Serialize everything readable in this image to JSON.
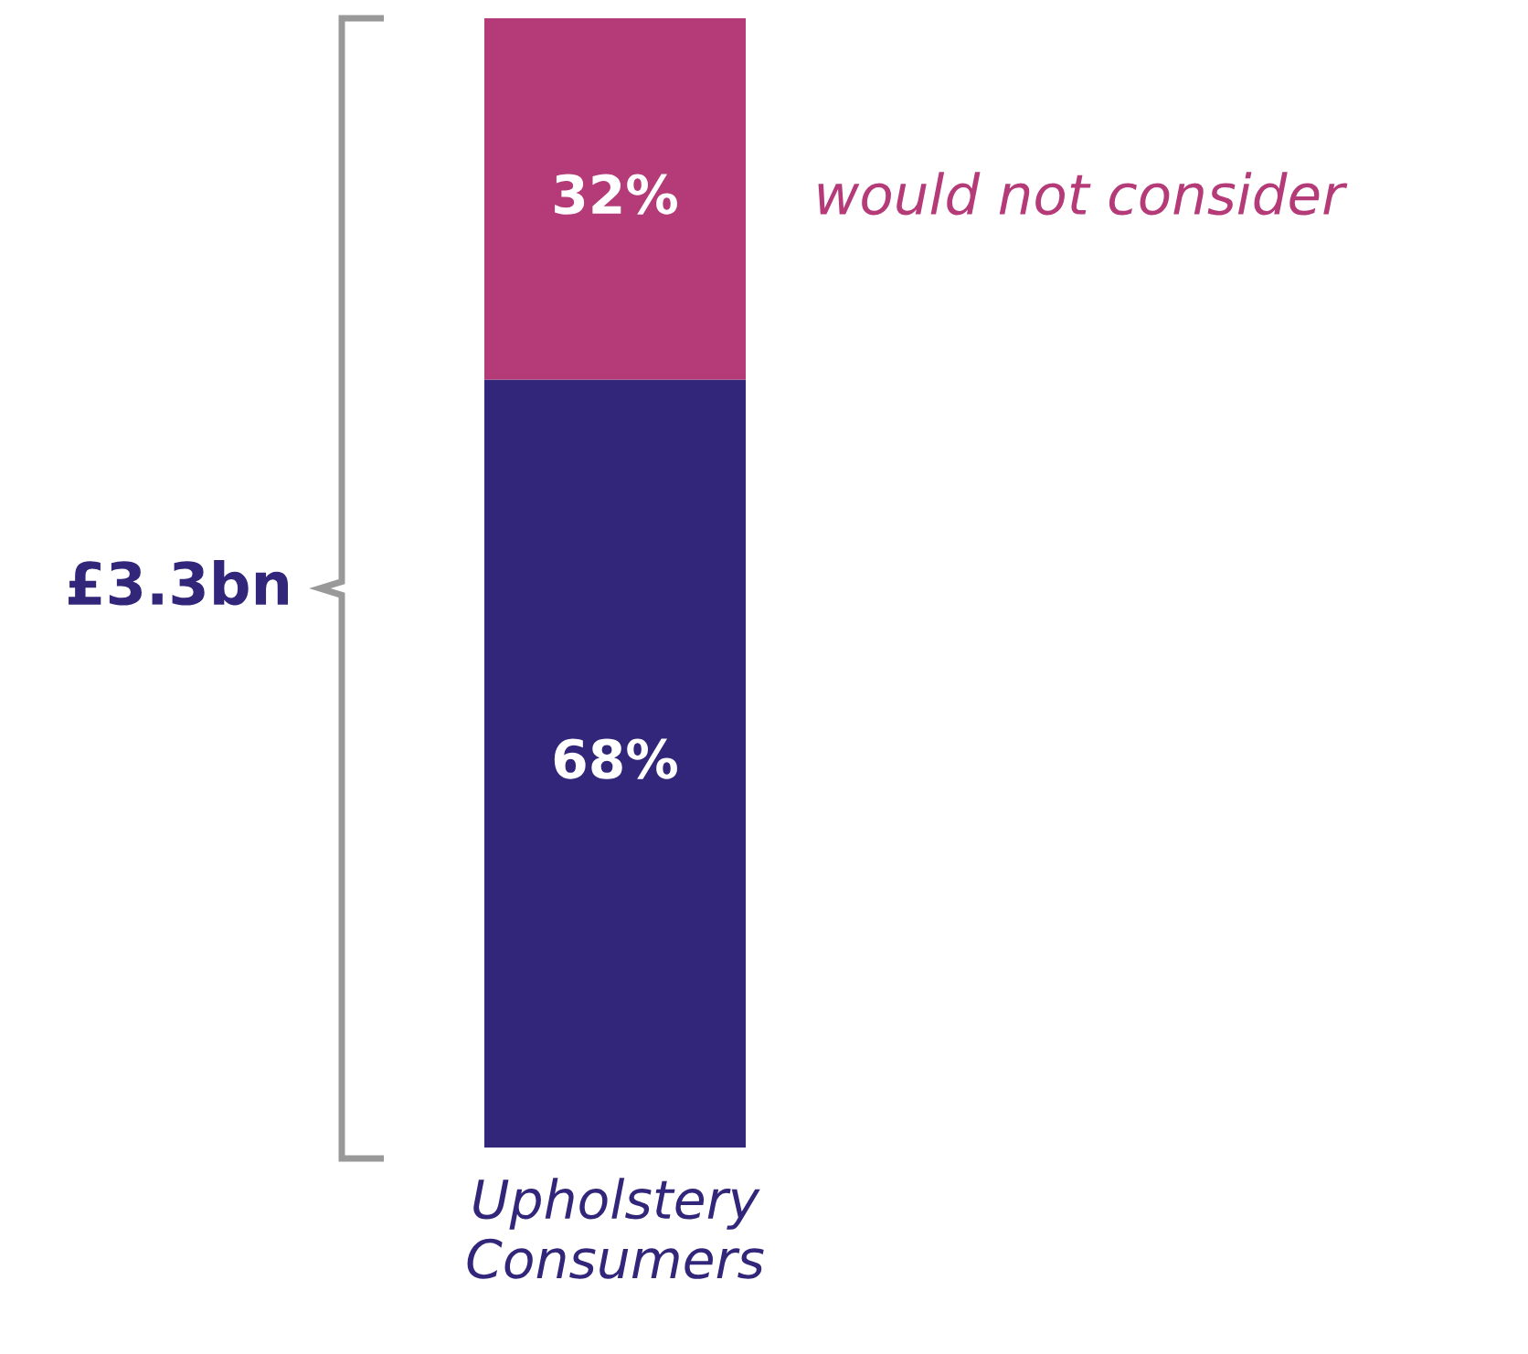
{
  "chart_data": {
    "type": "bar",
    "stacked": true,
    "categories": [
      "Upholstery Consumers"
    ],
    "series": [
      {
        "color": "#312679",
        "values": [
          68
        ],
        "value_labels": [
          "68%"
        ]
      },
      {
        "name": "would not consider",
        "color": "#b43a78",
        "values": [
          32
        ],
        "value_labels": [
          "32%"
        ]
      }
    ],
    "annotations": [
      "£3.3bn"
    ],
    "grid": false,
    "legend": false
  }
}
